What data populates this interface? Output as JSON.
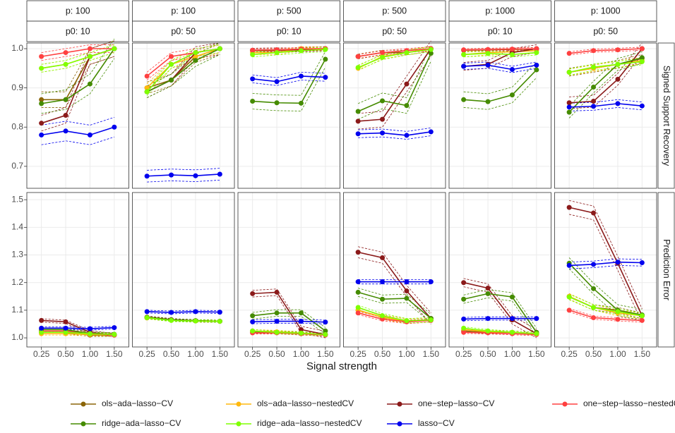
{
  "chart_data": {
    "type": "line",
    "x_label": "Signal strength",
    "categories": [
      "0.25",
      "0.50",
      "1.00",
      "1.50"
    ],
    "columns": [
      {
        "p": "p:  100",
        "p0": "p0: 10"
      },
      {
        "p": "p:  100",
        "p0": "p0: 50"
      },
      {
        "p": "p:  500",
        "p0": "p0: 10"
      },
      {
        "p": "p:  500",
        "p0": "p0: 50"
      },
      {
        "p": "p: 1000",
        "p0": "p0: 10"
      },
      {
        "p": "p: 1000",
        "p0": "p0: 50"
      }
    ],
    "series": [
      {
        "name": "ols−ada−lasso−CV",
        "color": "#8b6508"
      },
      {
        "name": "ols−ada−lasso−nestedCV",
        "color": "#ffb90f"
      },
      {
        "name": "one−step−lasso−CV",
        "color": "#8b1a1a"
      },
      {
        "name": "one−step−lasso−nestedCV",
        "color": "#ff4040"
      },
      {
        "name": "ridge−ada−lasso−CV",
        "color": "#458b00"
      },
      {
        "name": "ridge−ada−lasso−nestedCV",
        "color": "#7fff00"
      },
      {
        "name": "lasso−CV",
        "color": "#0000ee"
      }
    ],
    "grid": true,
    "rows": [
      {
        "label": "Signed Support Recovery",
        "ylim": [
          0.644,
          1.0144
        ],
        "yticks": [
          0.7,
          0.8,
          0.9,
          {
            "value": 1,
            "label": "1.0"
          }
        ],
        "panels": [
          {
            "values": [
              [
                0.87,
                0.87,
                0.98,
                1.0
              ],
              [
                0.95,
                0.96,
                0.98,
                1.0
              ],
              [
                0.81,
                0.83,
                0.98,
                1.0
              ],
              [
                0.98,
                0.99,
                1.0,
                1.0
              ],
              [
                0.86,
                0.87,
                0.91,
                1.0
              ],
              [
                0.95,
                0.96,
                0.98,
                1.0
              ],
              [
                0.78,
                0.79,
                0.78,
                0.8
              ]
            ],
            "errors": [
              0.02,
              0.01,
              0.02,
              0.01,
              0.025,
              0.01,
              0.025
            ]
          },
          {
            "values": [
              [
                0.9,
                0.92,
                0.98,
                1.0
              ],
              [
                0.9,
                0.96,
                0.98,
                1.0
              ],
              [
                0.89,
                0.92,
                0.99,
                1.0
              ],
              [
                0.93,
                0.98,
                0.99,
                1.0
              ],
              [
                0.89,
                0.92,
                0.97,
                1.0
              ],
              [
                0.89,
                0.96,
                0.99,
                1.0
              ],
              [
                0.675,
                0.678,
                0.676,
                0.68
              ]
            ],
            "errors": [
              0.015,
              0.01,
              0.015,
              0.01,
              0.015,
              0.01,
              0.015
            ]
          },
          {
            "values": [
              [
                0.995,
                0.995,
                0.998,
                1.0
              ],
              [
                0.99,
                0.99,
                1.0,
                1.0
              ],
              [
                0.996,
                0.997,
                0.997,
                1.0
              ],
              [
                0.996,
                0.997,
                0.999,
                1.0
              ],
              [
                0.866,
                0.862,
                0.861,
                0.973
              ],
              [
                0.985,
                0.99,
                0.995,
                0.998
              ],
              [
                0.923,
                0.916,
                0.93,
                0.927
              ]
            ],
            "errors": [
              0.005,
              0.005,
              0.005,
              0.004,
              0.02,
              0.006,
              0.01
            ]
          },
          {
            "values": [
              [
                0.98,
                0.99,
                0.99,
                1.0
              ],
              [
                0.95,
                0.98,
                0.99,
                1.0
              ],
              [
                0.815,
                0.82,
                0.91,
                1.0
              ],
              [
                0.98,
                0.99,
                0.995,
                1.0
              ],
              [
                0.84,
                0.867,
                0.855,
                0.988
              ],
              [
                0.952,
                0.978,
                0.99,
                0.998
              ],
              [
                0.783,
                0.785,
                0.779,
                0.788
              ]
            ],
            "errors": [
              0.006,
              0.006,
              0.02,
              0.005,
              0.02,
              0.006,
              0.01
            ]
          },
          {
            "values": [
              [
                0.996,
                0.997,
                0.998,
                0.999
              ],
              [
                0.985,
                0.99,
                0.992,
                0.995
              ],
              [
                0.955,
                0.96,
                0.99,
                1.0
              ],
              [
                0.997,
                0.998,
                0.999,
                1.0
              ],
              [
                0.87,
                0.865,
                0.882,
                0.946
              ],
              [
                0.985,
                0.988,
                0.985,
                0.99
              ],
              [
                0.955,
                0.958,
                0.947,
                0.958
              ]
            ],
            "errors": [
              0.004,
              0.006,
              0.01,
              0.003,
              0.02,
              0.006,
              0.008
            ]
          },
          {
            "values": [
              [
                0.94,
                0.95,
                0.96,
                0.975
              ],
              [
                0.94,
                0.95,
                0.96,
                0.97
              ],
              [
                0.862,
                0.866,
                0.922,
                1.0
              ],
              [
                0.988,
                0.995,
                0.997,
                1.0
              ],
              [
                0.838,
                0.902,
                0.96,
                0.977
              ],
              [
                0.94,
                0.953,
                0.96,
                0.967
              ],
              [
                0.851,
                0.853,
                0.86,
                0.854
              ]
            ],
            "errors": [
              0.01,
              0.008,
              0.015,
              0.004,
              0.015,
              0.008,
              0.01
            ]
          }
        ]
      },
      {
        "label": "Prediction Error",
        "ylim": [
          0.967,
          1.526
        ],
        "yticks": [
          {
            "value": 1,
            "label": "1.0"
          },
          1.1,
          1.2,
          1.3,
          1.4,
          1.5
        ],
        "panels": [
          {
            "values": [
              [
                1.02,
                1.02,
                1.01,
                1.01
              ],
              [
                1.015,
                1.015,
                1.012,
                1.01
              ],
              [
                1.063,
                1.058,
                1.02,
                1.01
              ],
              [
                1.025,
                1.025,
                1.015,
                1.01
              ],
              [
                1.03,
                1.03,
                1.015,
                1.013
              ],
              [
                1.02,
                1.02,
                1.015,
                1.012
              ],
              [
                1.035,
                1.035,
                1.033,
                1.037
              ]
            ],
            "errors": [
              0.005,
              0.005,
              0.006,
              0.005,
              0.006,
              0.005,
              0.005
            ]
          },
          {
            "values": [
              [
                1.073,
                1.065,
                1.062,
                1.06
              ],
              [
                1.072,
                1.064,
                1.062,
                1.06
              ],
              [
                1.075,
                1.066,
                1.062,
                1.06
              ],
              [
                1.073,
                1.065,
                1.061,
                1.06
              ],
              [
                1.074,
                1.065,
                1.062,
                1.06
              ],
              [
                1.073,
                1.063,
                1.061,
                1.06
              ],
              [
                1.095,
                1.092,
                1.095,
                1.093
              ]
            ],
            "errors": [
              0.004,
              0.004,
              0.004,
              0.004,
              0.004,
              0.004,
              0.005
            ]
          },
          {
            "values": [
              [
                1.02,
                1.02,
                1.015,
                1.012
              ],
              [
                1.025,
                1.022,
                1.017,
                1.012
              ],
              [
                1.16,
                1.165,
                1.03,
                1.012
              ],
              [
                1.018,
                1.018,
                1.015,
                1.01
              ],
              [
                1.08,
                1.09,
                1.09,
                1.025
              ],
              [
                1.025,
                1.02,
                1.017,
                1.012
              ],
              [
                1.058,
                1.06,
                1.06,
                1.057
              ]
            ],
            "errors": [
              0.005,
              0.005,
              0.012,
              0.004,
              0.012,
              0.005,
              0.007
            ]
          },
          {
            "values": [
              [
                1.1,
                1.075,
                1.06,
                1.065
              ],
              [
                1.1,
                1.075,
                1.06,
                1.065
              ],
              [
                1.31,
                1.29,
                1.17,
                1.07
              ],
              [
                1.09,
                1.068,
                1.058,
                1.063
              ],
              [
                1.165,
                1.14,
                1.143,
                1.07
              ],
              [
                1.11,
                1.08,
                1.062,
                1.065
              ],
              [
                1.203,
                1.203,
                1.203,
                1.203
              ]
            ],
            "errors": [
              0.008,
              0.008,
              0.02,
              0.006,
              0.015,
              0.008,
              0.008
            ]
          },
          {
            "values": [
              [
                1.025,
                1.02,
                1.02,
                1.015
              ],
              [
                1.03,
                1.022,
                1.02,
                1.015
              ],
              [
                1.2,
                1.18,
                1.065,
                1.015
              ],
              [
                1.02,
                1.018,
                1.015,
                1.012
              ],
              [
                1.14,
                1.16,
                1.148,
                1.02
              ],
              [
                1.035,
                1.025,
                1.02,
                1.015
              ],
              [
                1.068,
                1.07,
                1.07,
                1.07
              ]
            ],
            "errors": [
              0.005,
              0.005,
              0.015,
              0.004,
              0.015,
              0.005,
              0.006
            ]
          },
          {
            "values": [
              [
                1.15,
                1.11,
                1.1,
                1.08
              ],
              [
                1.15,
                1.11,
                1.09,
                1.08
              ],
              [
                1.472,
                1.452,
                1.27,
                1.08
              ],
              [
                1.1,
                1.073,
                1.067,
                1.063
              ],
              [
                1.27,
                1.178,
                1.1,
                1.083
              ],
              [
                1.148,
                1.11,
                1.095,
                1.08
              ],
              [
                1.262,
                1.266,
                1.274,
                1.272
              ]
            ],
            "errors": [
              0.01,
              0.01,
              0.025,
              0.006,
              0.02,
              0.01,
              0.012
            ]
          }
        ]
      }
    ]
  }
}
